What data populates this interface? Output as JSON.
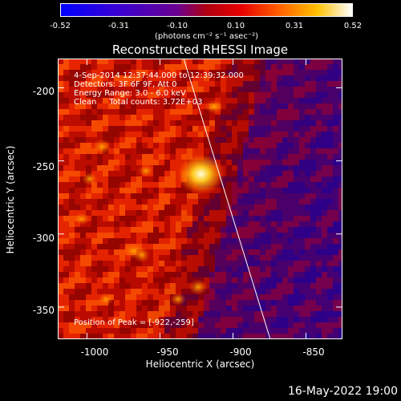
{
  "colorbar": {
    "ticks": [
      "-0.52",
      "-0.31",
      "-0.10",
      "0.10",
      "0.31",
      "0.52"
    ],
    "unit": "(photons cm⁻² s⁻¹ asec⁻²)",
    "min": -0.52,
    "max": 0.52
  },
  "title": "Reconstructed RHESSI Image",
  "info": {
    "time": "4-Sep-2014 12:37:44.000 to 12:39:32.000",
    "detectors": "Detectors: 3F 6F 9F, Att 0",
    "energy": "Energy Range: 3.0 - 6.0 keV",
    "clean": "Clean     Total counts: 3.72E+03",
    "peak": "Position of Peak = [-922,-259]"
  },
  "axes": {
    "xlabel": "Heliocentric X (arcsec)",
    "ylabel": "Heliocentric Y (arcsec)",
    "xticks": [
      "-1000",
      "-950",
      "-900",
      "-850"
    ],
    "yticks": [
      "-200",
      "-250",
      "-300",
      "-350"
    ],
    "xlim": [
      -1020,
      -825
    ],
    "ylim": [
      -372,
      -180
    ]
  },
  "peak": {
    "x": -922,
    "y": -259
  },
  "footer": "16-May-2022 19:00"
}
